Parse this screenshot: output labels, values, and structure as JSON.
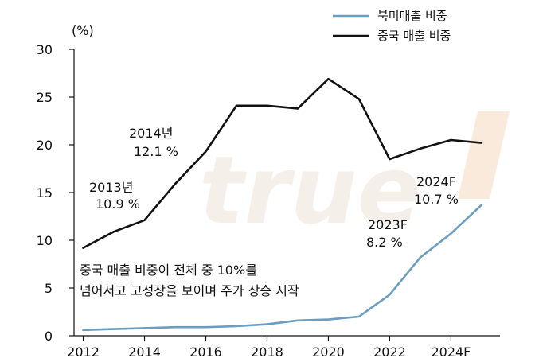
{
  "chart_data": {
    "type": "line",
    "ylabel": "(%)",
    "ylim": [
      0,
      30
    ],
    "yticks": [
      0,
      5,
      10,
      15,
      20,
      25,
      30
    ],
    "xlim": [
      2011.7,
      2025.6
    ],
    "xticks": [
      2012,
      2014,
      2016,
      2018,
      2020,
      2022,
      2024
    ],
    "xtick_labels": [
      "2012",
      "2014",
      "2016",
      "2018",
      "2020",
      "2022",
      "2024F"
    ],
    "grid": false,
    "legend_position": "top-right",
    "series": [
      {
        "name": "북미매출 비중",
        "color": "#6a9dbf",
        "x": [
          2012,
          2013,
          2014,
          2015,
          2016,
          2017,
          2018,
          2019,
          2020,
          2021,
          2022,
          2023,
          2024,
          2025
        ],
        "values": [
          0.6,
          0.7,
          0.8,
          0.9,
          0.9,
          1.0,
          1.2,
          1.6,
          1.7,
          2.0,
          4.3,
          8.2,
          10.7,
          13.7
        ]
      },
      {
        "name": "중국 매출 비중",
        "color": "#111111",
        "x": [
          2012,
          2013,
          2014,
          2015,
          2016,
          2017,
          2018,
          2019,
          2020,
          2021,
          2022,
          2023,
          2024,
          2025
        ],
        "values": [
          9.2,
          10.9,
          12.1,
          15.9,
          19.3,
          24.1,
          24.1,
          23.8,
          26.9,
          24.8,
          18.5,
          19.6,
          20.5,
          20.2
        ]
      }
    ],
    "annotations": [
      {
        "label": "2013년",
        "value": "10.9 %"
      },
      {
        "label": "2014년",
        "value": "12.1 %"
      },
      {
        "label": "2023F",
        "value": "8.2 %"
      },
      {
        "label": "2024F",
        "value": "10.7 %"
      }
    ],
    "note_lines": [
      "중국 매출 비중이 전체 중 10%를",
      "넘어서고 고성장을 보이며 주가 상승 시작"
    ]
  },
  "watermark": "true"
}
